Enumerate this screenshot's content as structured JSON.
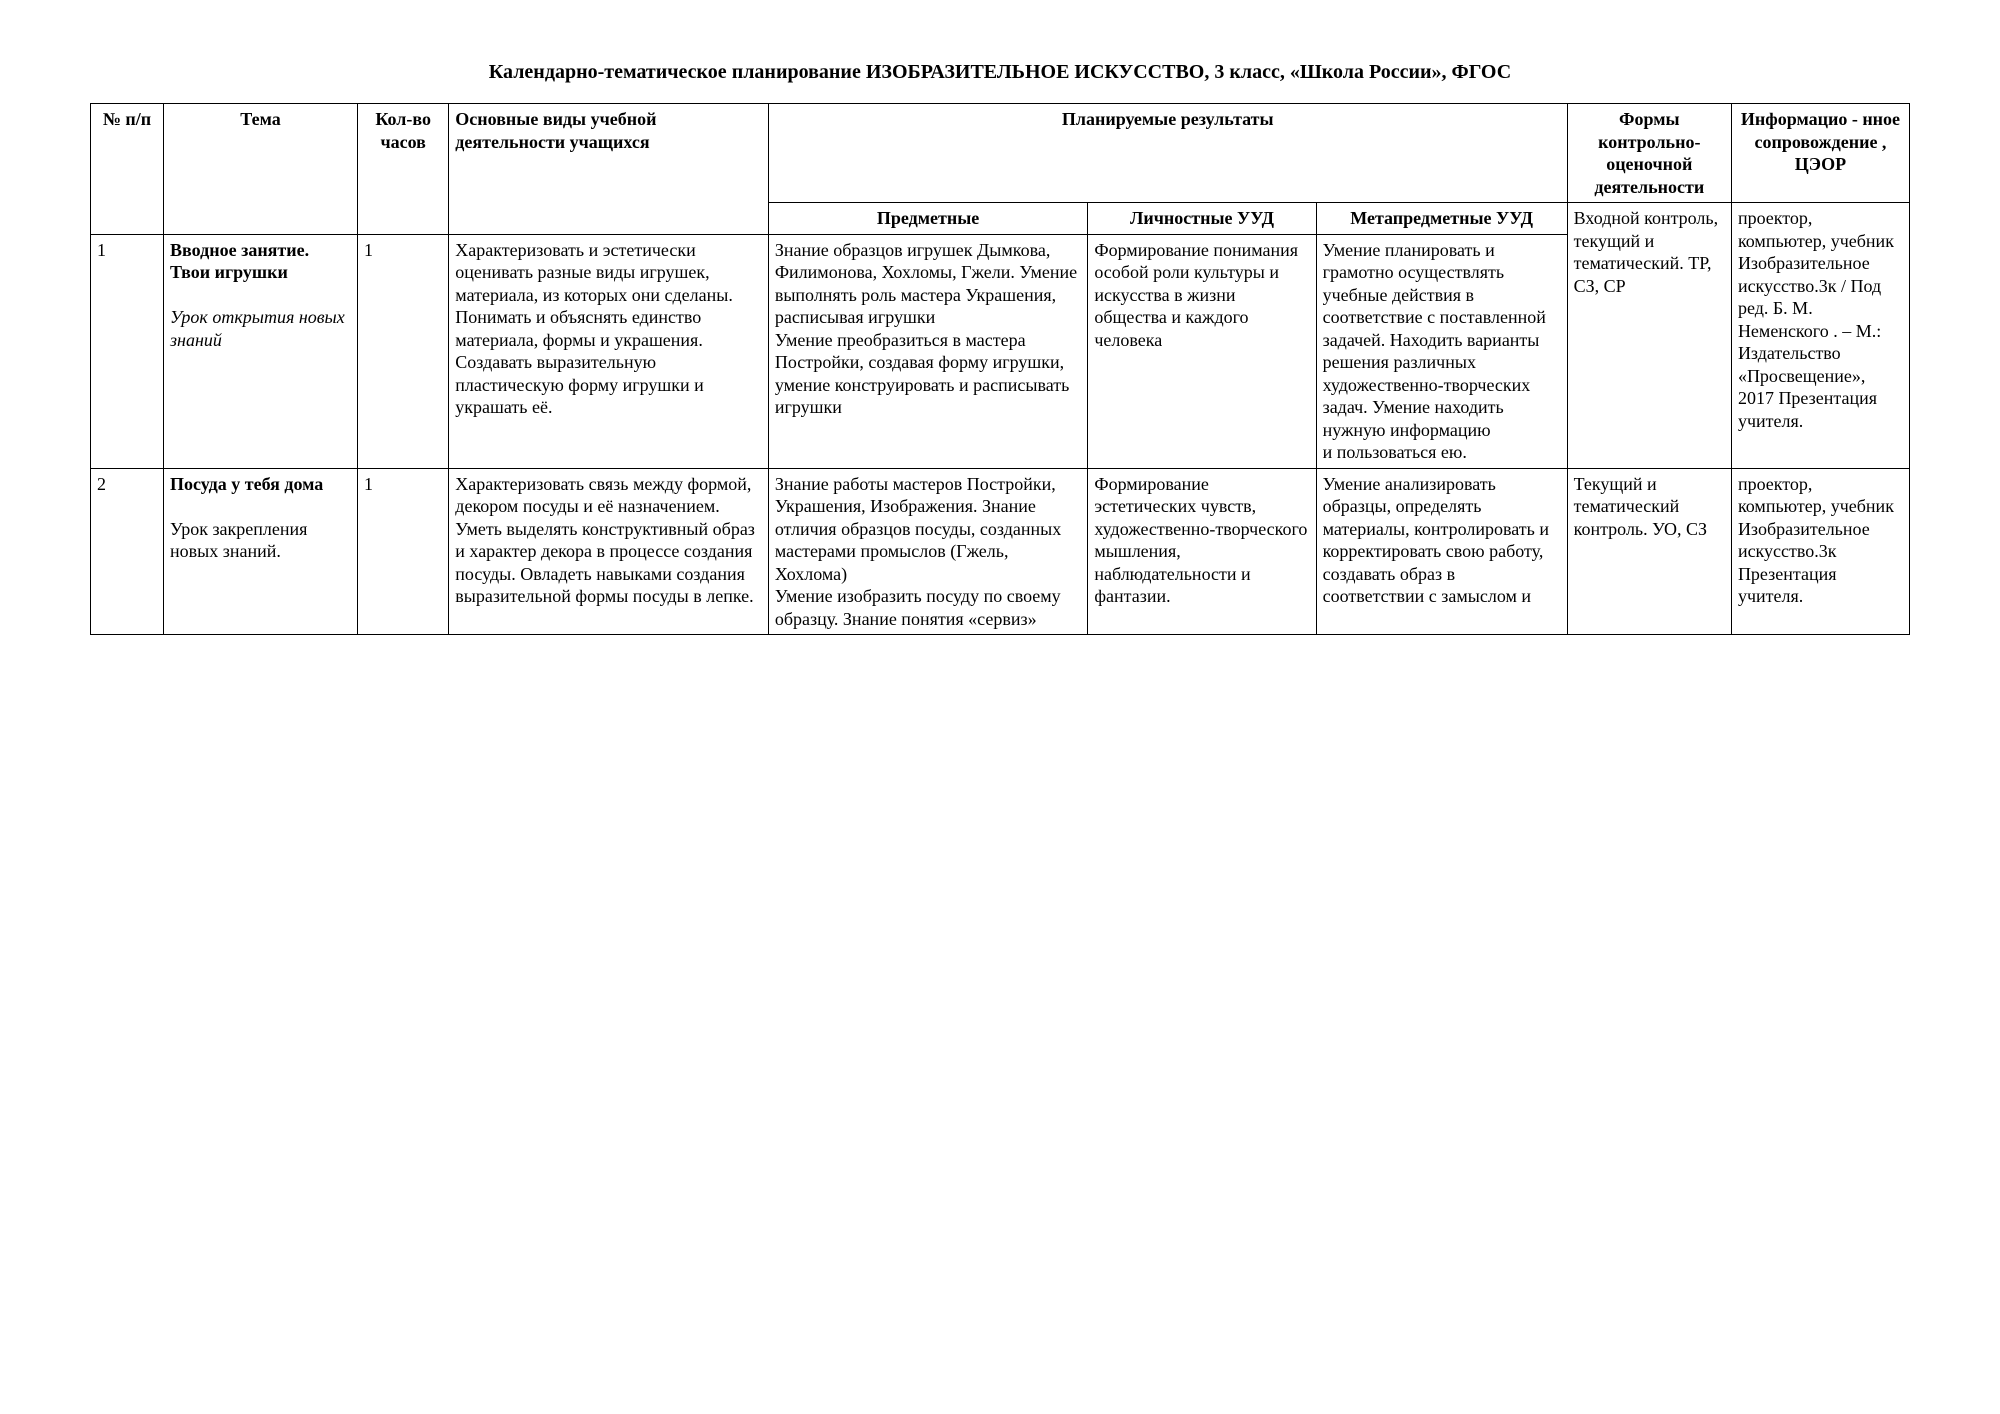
{
  "title": "Календарно-тематическое планирование ИЗОБРАЗИТЕЛЬНОЕ ИСКУССТВО, 3 класс, «Школа России», ФГОС",
  "headers": {
    "num": "№ п/п",
    "tema": "Тема",
    "hours": "Кол-во часов",
    "activ": "Основные виды учебной деятельности учащихся",
    "results": "Планируемые результаты",
    "pred": "Предметные",
    "lich": "Личностные УУД",
    "meta": "Метапредметные УУД",
    "form": "Формы контрольно-оценочной деятельности",
    "info": "Информацио - нное сопровождение , ЦЭОР"
  },
  "rows": [
    {
      "num": "1",
      "tema_bold": "Вводное занятие. Твои игрушки",
      "tema_italic": "Урок открытия новых знаний",
      "hours": "1",
      "activ": "Характеризовать и эстетически оценивать разные виды игрушек, материала, из которых они сделаны. Понимать и объяснять единство материала, формы и украшения. Создавать выразительную пластическую форму игрушки и украшать её.",
      "pred": "Знание образцов игрушек Дымкова, Филимонова, Хохломы, Гжели. Умение выполнять роль мастера Украшения, расписывая игрушки\nУмение преобразиться в мастера Постройки, создавая форму игрушки, умение конструировать  и расписывать игрушки",
      "lich": "Формирование понимания особой роли культуры и искусства в жизни общества и каждого человека",
      "meta": "Умение планировать и грамотно осуществлять учебные действия в соответствие с поставленной задачей. Находить варианты решения различных художественно-творческих задач. Умение  находить нужную информацию\nи пользоваться ею.",
      "form": "Входной контроль, текущий и тематический. ТР, СЗ, СР",
      "info": "проектор, компьютер, учебник Изобразительное искусство.3к / Под ред.  Б. М. Неменского . – М.: Издательство «Просвещение», 2017 Презентация учителя."
    },
    {
      "num": "2",
      "tema_bold": "Посуда у тебя дома",
      "tema_plain": "Урок закрепления новых знаний.",
      "hours": "1",
      "activ": "Характеризовать связь между формой, декором посуды и её назначением. Уметь выделять конструктивный образ и характер декора в процессе создания посуды. Овладеть навыками  создания выразительной формы посуды в лепке.",
      "pred": "Знание работы мастеров Постройки, Украшения, Изображения. Знание отличия образцов посуды, созданных мастерами промыслов (Гжель, Хохлома)\nУмение изобразить посуду по своему образцу. Знание понятия «сервиз»",
      "lich": "Формирование эстетических чувств, художественно-творческого мышления, наблюдательности и фантазии.",
      "meta": "Умение анализировать образцы, определять материалы, контролировать и корректировать свою работу, создавать образ в соответствии с замыслом и",
      "form": "Текущий и тематический контроль. УО, СЗ",
      "info": "проектор, компьютер, учебник Изобразительное искусство.3к\nПрезентация учителя."
    }
  ]
}
